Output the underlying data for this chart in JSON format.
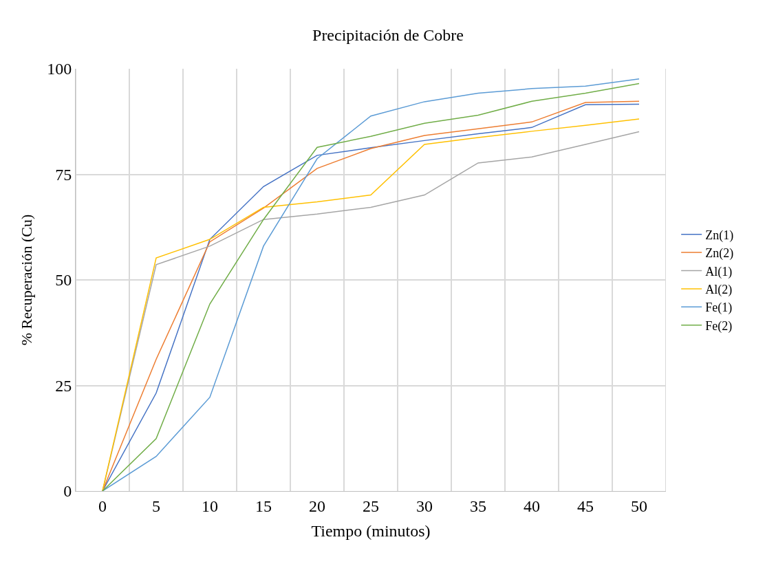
{
  "chart_data": {
    "type": "line",
    "title": "Precipitación de Cobre",
    "xlabel": "Tiempo (minutos)",
    "ylabel": "% Recuperación (Cu)",
    "categories": [
      "0",
      "5",
      "10",
      "15",
      "20",
      "25",
      "30",
      "35",
      "40",
      "45",
      "50"
    ],
    "ylim": [
      0,
      100
    ],
    "yticks": [
      0,
      25,
      50,
      75,
      100
    ],
    "grid": true,
    "legend": "right",
    "marker": "none",
    "line_style": "solid",
    "series": [
      {
        "name": "Zn(1)",
        "color": "#4472c4",
        "values": [
          0,
          23.2,
          59.6,
          72.1,
          79.5,
          81.3,
          83.0,
          84.6,
          86.1,
          91.5,
          91.6
        ]
      },
      {
        "name": "Zn(2)",
        "color": "#ed7d31",
        "values": [
          0,
          31.2,
          59.0,
          67.0,
          76.4,
          81.1,
          84.2,
          85.8,
          87.4,
          92.0,
          92.3
        ]
      },
      {
        "name": "Al(1)",
        "color": "#a5a5a5",
        "values": [
          0,
          53.6,
          58.0,
          64.3,
          65.6,
          67.2,
          70.1,
          77.7,
          79.1,
          82.1,
          85.1
        ]
      },
      {
        "name": "Al(2)",
        "color": "#ffc000",
        "values": [
          0,
          55.2,
          59.6,
          67.2,
          68.5,
          70.1,
          82.1,
          83.7,
          85.2,
          86.6,
          88.1
        ]
      },
      {
        "name": "Fe(1)",
        "color": "#5b9bd5",
        "values": [
          0,
          8.2,
          22.2,
          58.0,
          78.7,
          88.8,
          92.2,
          94.2,
          95.3,
          95.9,
          97.6
        ]
      },
      {
        "name": "Fe(2)",
        "color": "#70ad47",
        "values": [
          0,
          12.4,
          44.3,
          64.3,
          81.4,
          84.0,
          87.1,
          89.0,
          92.3,
          94.2,
          96.5
        ]
      }
    ]
  }
}
